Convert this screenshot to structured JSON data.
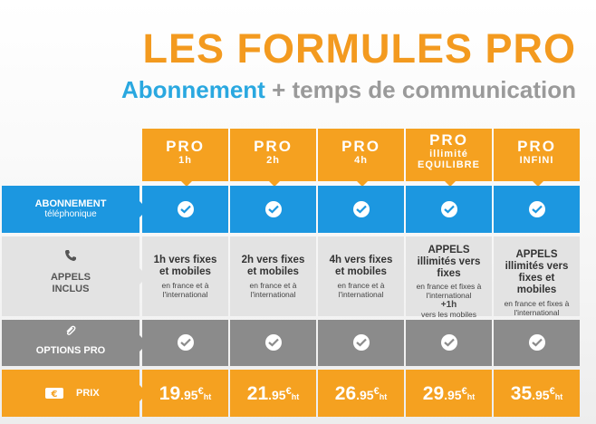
{
  "title": "LES FORMULES PRO",
  "subtitle": {
    "part1": "Abonnement",
    "plus": "+",
    "part2": "temps de communication"
  },
  "plans": [
    {
      "name": "PRO",
      "sub1": "1h",
      "sub2": ""
    },
    {
      "name": "PRO",
      "sub1": "2h",
      "sub2": ""
    },
    {
      "name": "PRO",
      "sub1": "4h",
      "sub2": ""
    },
    {
      "name": "PRO",
      "sub1": "illimité",
      "sub2": "EQUILIBRE"
    },
    {
      "name": "PRO",
      "sub1": "INFINI",
      "sub2": ""
    }
  ],
  "rows": {
    "abonnement": {
      "label1": "ABONNEMENT",
      "label2": "téléphonique"
    },
    "appels": {
      "label1": "APPELS",
      "label2": "INCLUS",
      "cells": [
        {
          "main": "1h vers fixes et mobiles",
          "small": "en france et à l'international",
          "extra": ""
        },
        {
          "main": "2h vers fixes et mobiles",
          "small": "en france et à l'international",
          "extra": ""
        },
        {
          "main": "4h vers fixes et mobiles",
          "small": "en france et à l'international",
          "extra": ""
        },
        {
          "main": "APPELS illimités vers fixes",
          "small": "en france et fixes à l'international",
          "extra": "+1h",
          "extra_small": "vers les mobiles"
        },
        {
          "main": "APPELS illimités vers fixes et mobiles",
          "small": "en france et fixes à l'international",
          "extra": ""
        }
      ]
    },
    "options": {
      "label": "OPTIONS PRO"
    },
    "prix": {
      "label": "PRIX",
      "currency": "€",
      "unit": "ht",
      "prices": [
        {
          "int": "19",
          "dec": ".95"
        },
        {
          "int": "21",
          "dec": ".95"
        },
        {
          "int": "26",
          "dec": ".95"
        },
        {
          "int": "29",
          "dec": ".95"
        },
        {
          "int": "35",
          "dec": ".95"
        }
      ]
    }
  },
  "colors": {
    "orange": "#f5a120",
    "blue": "#1c97e0",
    "grey": "#e3e3e3",
    "darkgrey": "#8b8b8b"
  }
}
